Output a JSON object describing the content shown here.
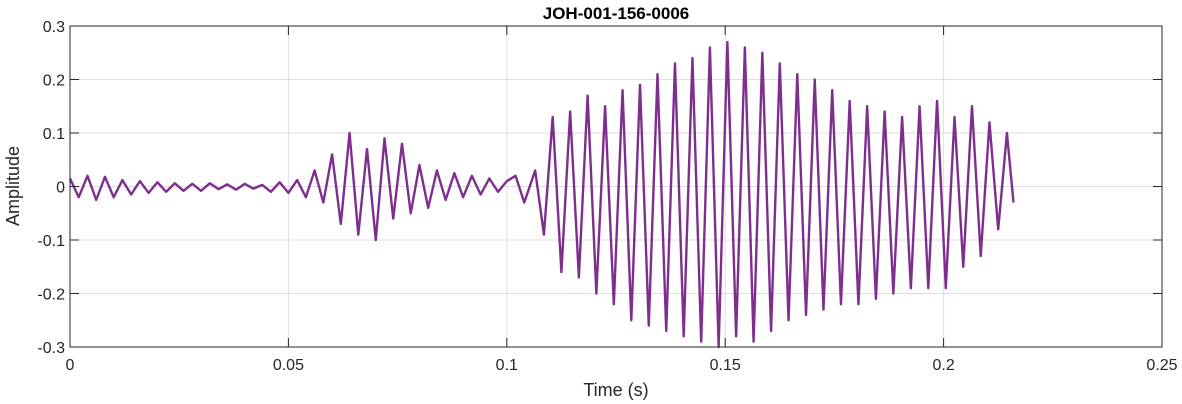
{
  "chart_data": {
    "type": "line",
    "title": "JOH-001-156-0006",
    "xlabel": "Time (s)",
    "ylabel": "Amplitude",
    "xlim": [
      0,
      0.25
    ],
    "ylim": [
      -0.3,
      0.3
    ],
    "xticks": [
      0,
      0.05,
      0.1,
      0.15,
      0.2,
      0.25
    ],
    "xtick_labels": [
      "0",
      "0.05",
      "0.1",
      "0.15",
      "0.2",
      "0.25"
    ],
    "yticks": [
      -0.3,
      -0.2,
      -0.1,
      0,
      0.1,
      0.2,
      0.3
    ],
    "ytick_labels": [
      "-0.3",
      "-0.2",
      "-0.1",
      "0",
      "0.1",
      "0.2",
      "0.3"
    ],
    "grid": true,
    "line_color": "#7e2f8e",
    "series": [
      {
        "name": "",
        "x": [
          0,
          0.002,
          0.004,
          0.006,
          0.008,
          0.01,
          0.012,
          0.014,
          0.016,
          0.018,
          0.02,
          0.022,
          0.024,
          0.026,
          0.028,
          0.03,
          0.032,
          0.034,
          0.036,
          0.038,
          0.04,
          0.042,
          0.044,
          0.046,
          0.048,
          0.05,
          0.052,
          0.054,
          0.056,
          0.058,
          0.06,
          0.062,
          0.064,
          0.066,
          0.068,
          0.07,
          0.072,
          0.074,
          0.076,
          0.078,
          0.08,
          0.082,
          0.084,
          0.086,
          0.088,
          0.09,
          0.092,
          0.094,
          0.096,
          0.098,
          0.1,
          0.102,
          0.104,
          0.1065,
          0.1085,
          0.1105,
          0.1125,
          0.1145,
          0.1165,
          0.1185,
          0.1205,
          0.1225,
          0.1245,
          0.1265,
          0.1285,
          0.1305,
          0.1325,
          0.1345,
          0.1365,
          0.1385,
          0.1405,
          0.1425,
          0.1445,
          0.1465,
          0.1485,
          0.1505,
          0.1525,
          0.1545,
          0.1565,
          0.1585,
          0.1605,
          0.1625,
          0.1645,
          0.1665,
          0.1685,
          0.1705,
          0.1725,
          0.1745,
          0.1765,
          0.1785,
          0.1805,
          0.1825,
          0.1845,
          0.1865,
          0.1885,
          0.1905,
          0.1925,
          0.1945,
          0.1965,
          0.1985,
          0.2005,
          0.2025,
          0.2045,
          0.2065,
          0.2085,
          0.2105,
          0.2125,
          0.2145,
          0.216
        ],
        "y": [
          0.015,
          -0.02,
          0.02,
          -0.025,
          0.018,
          -0.02,
          0.012,
          -0.015,
          0.01,
          -0.012,
          0.008,
          -0.01,
          0.006,
          -0.008,
          0.005,
          -0.008,
          0.006,
          -0.005,
          0.004,
          -0.006,
          0.005,
          -0.004,
          0.003,
          -0.01,
          0.008,
          -0.012,
          0.012,
          -0.02,
          0.03,
          -0.03,
          0.06,
          -0.07,
          0.1,
          -0.09,
          0.07,
          -0.1,
          0.09,
          -0.06,
          0.08,
          -0.05,
          0.04,
          -0.04,
          0.03,
          -0.025,
          0.025,
          -0.02,
          0.02,
          -0.015,
          0.015,
          -0.01,
          0.01,
          0.02,
          -0.03,
          0.03,
          -0.09,
          0.13,
          -0.16,
          0.14,
          -0.17,
          0.17,
          -0.2,
          0.15,
          -0.22,
          0.18,
          -0.25,
          0.19,
          -0.26,
          0.21,
          -0.27,
          0.23,
          -0.28,
          0.24,
          -0.29,
          0.26,
          -0.3,
          0.27,
          -0.28,
          0.26,
          -0.29,
          0.25,
          -0.27,
          0.23,
          -0.25,
          0.21,
          -0.24,
          0.2,
          -0.23,
          0.18,
          -0.22,
          0.16,
          -0.22,
          0.15,
          -0.21,
          0.14,
          -0.2,
          0.13,
          -0.19,
          0.15,
          -0.19,
          0.16,
          -0.19,
          0.13,
          -0.15,
          0.15,
          -0.13,
          0.12,
          -0.08,
          0.1,
          -0.03
        ]
      }
    ]
  }
}
